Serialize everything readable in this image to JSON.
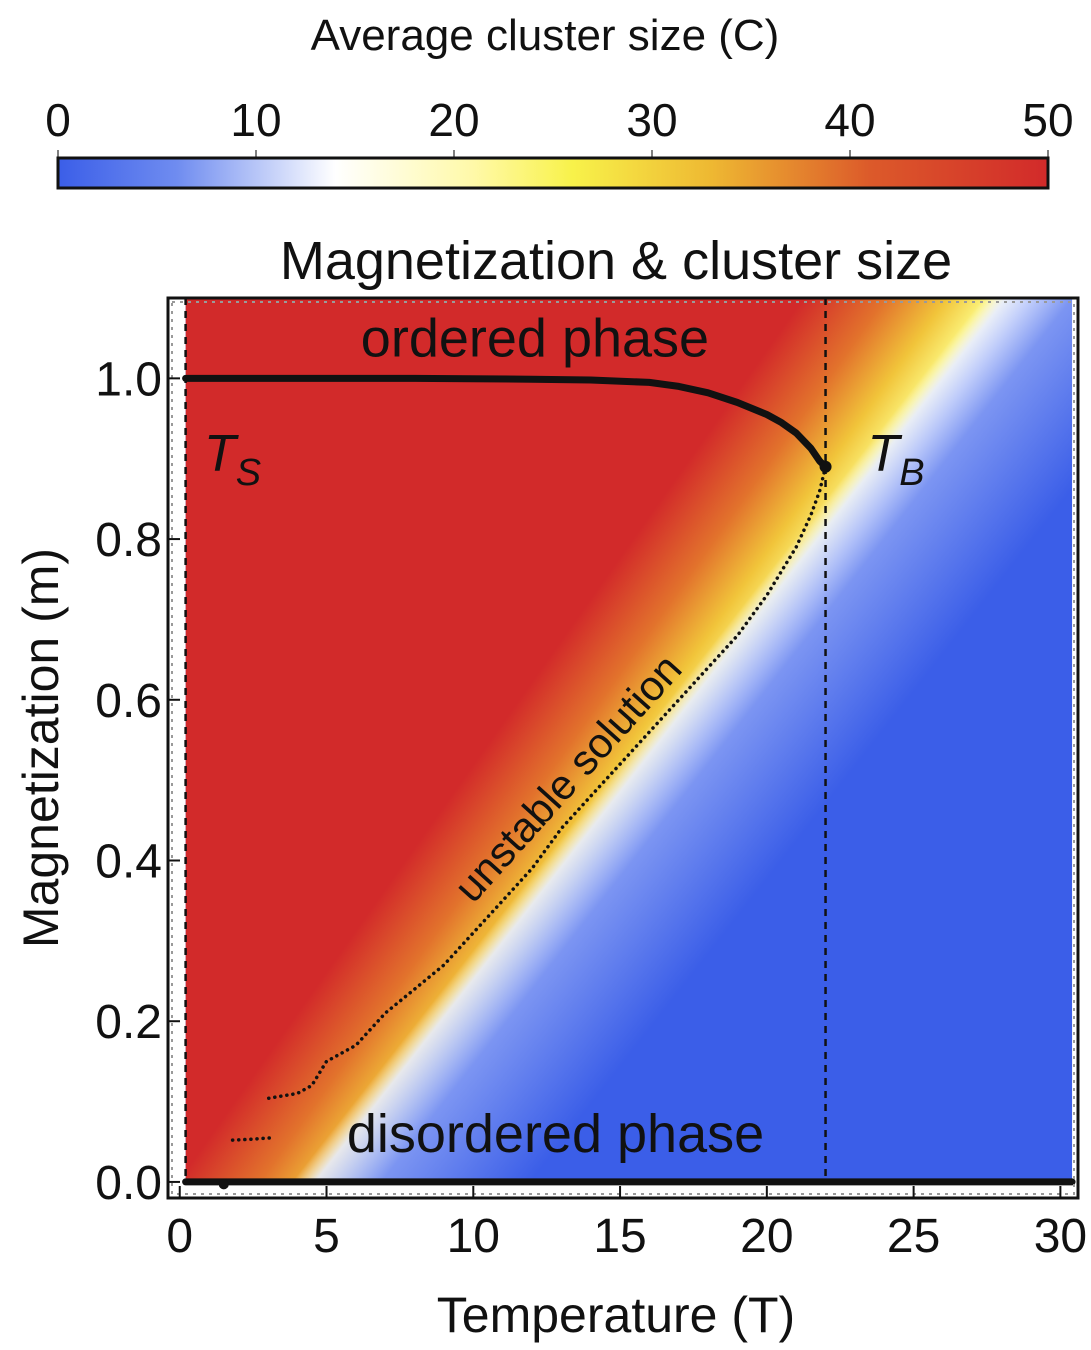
{
  "colorbar": {
    "title": "Average cluster size (C)",
    "min": 0,
    "max": 50,
    "ticks": [
      "0",
      "10",
      "20",
      "30",
      "40",
      "50"
    ],
    "stops": [
      {
        "at": 0.0,
        "color": "#3b5ee8"
      },
      {
        "at": 0.12,
        "color": "#6f8cf0"
      },
      {
        "at": 0.28,
        "color": "#ffffff"
      },
      {
        "at": 0.42,
        "color": "#fff9a8"
      },
      {
        "at": 0.52,
        "color": "#f8f24a"
      },
      {
        "at": 0.66,
        "color": "#eeb832"
      },
      {
        "at": 0.82,
        "color": "#dc5a2a"
      },
      {
        "at": 1.0,
        "color": "#d22a2a"
      }
    ]
  },
  "chart_data": {
    "type": "heatmap",
    "title": "Magnetization & cluster size",
    "xlabel": "Temperature (T)",
    "ylabel": "Magnetization (m)",
    "xlim": [
      -0.4,
      30.6
    ],
    "ylim": [
      -0.02,
      1.1
    ],
    "x_ticks": [
      0,
      5,
      10,
      15,
      20,
      25,
      30
    ],
    "x_tick_labels": [
      "0",
      "5",
      "10",
      "15",
      "20",
      "25",
      "30"
    ],
    "y_ticks": [
      0.0,
      0.2,
      0.4,
      0.6,
      0.8,
      1.0
    ],
    "y_tick_labels": [
      "0.0",
      "0.2",
      "0.4",
      "0.6",
      "0.8",
      "1.0"
    ],
    "heatmap_region": {
      "x": [
        0.2,
        30.4
      ],
      "y": [
        0.0,
        1.1
      ]
    },
    "annotations": [
      {
        "name": "ordered-phase-label",
        "text": "ordered phase",
        "x": 12.1,
        "y": 1.045,
        "rotation": 0
      },
      {
        "name": "disordered-phase-label",
        "text": "disordered phase",
        "x": 12.8,
        "y": 0.055,
        "rotation": 0
      },
      {
        "name": "unstable-solution-label",
        "text": "unstable solution",
        "x": 13.3,
        "y": 0.5,
        "rotation": -48
      }
    ],
    "vertical_lines": [
      {
        "name": "ts-line",
        "x": 0.2,
        "label": "T",
        "subscript": "S",
        "label_x": 1.8,
        "label_y": 0.885
      },
      {
        "name": "tb-line",
        "x": 22.0,
        "label": "T",
        "subscript": "B",
        "label_x": 24.4,
        "label_y": 0.885
      }
    ],
    "series": [
      {
        "name": "ordered-branch",
        "style": "thick",
        "points": [
          [
            0.2,
            1.0
          ],
          [
            4,
            1.0
          ],
          [
            8,
            1.0
          ],
          [
            12,
            0.999
          ],
          [
            14,
            0.998
          ],
          [
            16,
            0.995
          ],
          [
            17,
            0.99
          ],
          [
            18,
            0.982
          ],
          [
            19,
            0.97
          ],
          [
            20,
            0.955
          ],
          [
            20.5,
            0.945
          ],
          [
            21,
            0.932
          ],
          [
            21.5,
            0.913
          ],
          [
            21.8,
            0.897
          ],
          [
            22.0,
            0.89
          ]
        ]
      },
      {
        "name": "unstable-branch",
        "style": "dotted",
        "points": [
          [
            22.0,
            0.89
          ],
          [
            21.8,
            0.86
          ],
          [
            21.5,
            0.83
          ],
          [
            21.0,
            0.79
          ],
          [
            20.0,
            0.73
          ],
          [
            19.0,
            0.68
          ],
          [
            18.0,
            0.64
          ],
          [
            17.0,
            0.6
          ],
          [
            16.0,
            0.56
          ],
          [
            15.0,
            0.52
          ],
          [
            14.0,
            0.48
          ],
          [
            13.0,
            0.44
          ],
          [
            12.0,
            0.39
          ],
          [
            11.0,
            0.35
          ],
          [
            10.0,
            0.31
          ],
          [
            9.0,
            0.27
          ],
          [
            8.0,
            0.24
          ],
          [
            7.0,
            0.21
          ],
          [
            6.0,
            0.17
          ],
          [
            5.0,
            0.15
          ],
          [
            4.5,
            0.12
          ],
          [
            4.0,
            0.11
          ],
          [
            3.5,
            0.107
          ],
          [
            3.0,
            0.104
          ]
        ]
      },
      {
        "name": "low-branch-step",
        "style": "dotted",
        "points": [
          [
            1.8,
            0.052
          ],
          [
            2.4,
            0.053
          ],
          [
            3.2,
            0.055
          ]
        ]
      },
      {
        "name": "disordered-branch",
        "style": "thick",
        "points": [
          [
            0.2,
            0.0
          ],
          [
            30.4,
            0.0
          ]
        ]
      }
    ]
  }
}
